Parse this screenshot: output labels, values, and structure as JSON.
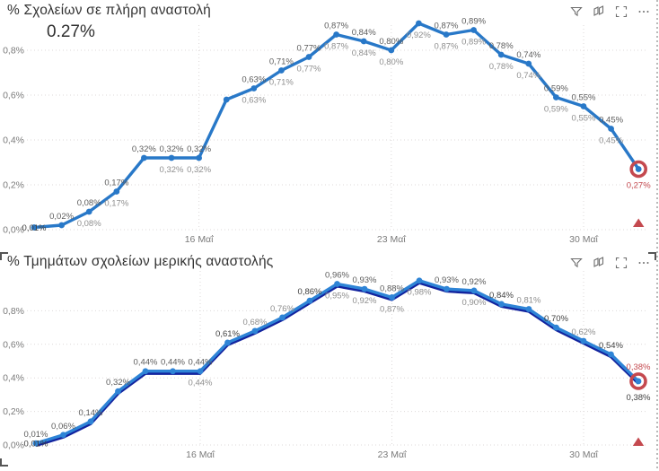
{
  "colors": {
    "line_blue": "#2878C8",
    "line_blue_bottom": "#2E84D6",
    "shadow_navy": "#12239E",
    "red_accent": "#C4494F",
    "label_above": "#5c5c5c",
    "label_below": "#8f8f8f",
    "label_dark": "#3f3f3f",
    "axis_text": "#7a7a7a",
    "title_text": "#333333"
  },
  "header_icons": [
    {
      "name": "filter"
    },
    {
      "name": "copy-visual"
    },
    {
      "name": "focus-mode"
    },
    {
      "name": "more-options"
    }
  ],
  "chart_data": [
    {
      "type": "line",
      "title": "% Σχολείων σε πλήρη αναστολή",
      "callout_value": "0.27%",
      "ylim": [
        0,
        0.9
      ],
      "grid": true,
      "yticks": [
        "0,0%",
        "0,2%",
        "0,4%",
        "0,6%",
        "0,8%"
      ],
      "xticks": [
        {
          "i": 6,
          "label": "16 Μαΐ"
        },
        {
          "i": 13,
          "label": "23 Μαΐ"
        },
        {
          "i": 20,
          "label": "30 Μαΐ"
        }
      ],
      "points": [
        {
          "v": 0.01,
          "on": "0,01%"
        },
        {
          "v": 0.02,
          "a": "0,02%"
        },
        {
          "v": 0.08,
          "a": "0,08%",
          "b": "0,08%"
        },
        {
          "v": 0.17,
          "a": "0,17%",
          "b": "0,17%"
        },
        {
          "v": 0.32,
          "a": "0,32%"
        },
        {
          "v": 0.32,
          "a": "0,32%",
          "b": "0,32%"
        },
        {
          "v": 0.32,
          "a": "0,32%",
          "b": "0,32%"
        },
        {
          "v": 0.58
        },
        {
          "v": 0.63,
          "a": "0,63%",
          "b": "0,63%"
        },
        {
          "v": 0.71,
          "a": "0,71%",
          "b": "0,71%"
        },
        {
          "v": 0.77,
          "a": "0,77%",
          "b": "0,77%"
        },
        {
          "v": 0.87,
          "a": "0,87%",
          "b": "0,87%"
        },
        {
          "v": 0.84,
          "a": "0,84%",
          "b": "0,84%"
        },
        {
          "v": 0.8,
          "a": "0,80%",
          "b": "0,80%"
        },
        {
          "v": 0.92,
          "b": "0,92%"
        },
        {
          "v": 0.87,
          "a": "0,87%",
          "b": "0,87%"
        },
        {
          "v": 0.89,
          "a": "0,89%",
          "b": "0,89%"
        },
        {
          "v": 0.78,
          "a": "0,78%",
          "b": "0,78%"
        },
        {
          "v": 0.74,
          "a": "0,74%",
          "b": "0,74%"
        },
        {
          "v": 0.59,
          "a": "0,59%",
          "b": "0,59%"
        },
        {
          "v": 0.55,
          "a": "0,55%",
          "b": "0,55%"
        },
        {
          "v": 0.45,
          "a": "0,45%",
          "b": "0,45%"
        },
        {
          "v": 0.27,
          "b": "0,27%",
          "bc": "#C4494F",
          "end": true
        }
      ]
    },
    {
      "type": "line",
      "title": "% Τμημάτων σχολείων μερικής αναστολής",
      "ylim": [
        0,
        1.05
      ],
      "grid": true,
      "shadow": true,
      "yticks": [
        "0,0%",
        "0,2%",
        "0,4%",
        "0,6%",
        "0,8%"
      ],
      "xticks": [
        {
          "i": 6,
          "label": "16 Μαΐ"
        },
        {
          "i": 13,
          "label": "23 Μαΐ"
        },
        {
          "i": 20,
          "label": "30 Μαΐ"
        }
      ],
      "points": [
        {
          "v": 0.01,
          "a": "0,01%",
          "on": "0,01%"
        },
        {
          "v": 0.06,
          "a": "0,06%"
        },
        {
          "v": 0.14,
          "a": "0,14%"
        },
        {
          "v": 0.32,
          "a": "0,32%"
        },
        {
          "v": 0.44,
          "a": "0,44%"
        },
        {
          "v": 0.44,
          "a": "0,44%"
        },
        {
          "v": 0.44,
          "a": "0,44%",
          "b": "0,44%"
        },
        {
          "v": 0.61,
          "a": "0,61%",
          "ac": "#3f3f3f"
        },
        {
          "v": 0.68,
          "a": "0,68%",
          "ac": "#8f8f8f"
        },
        {
          "v": 0.76,
          "a": "0,76%",
          "ac": "#8f8f8f"
        },
        {
          "v": 0.86,
          "a": "0,86%",
          "ac": "#3f3f3f"
        },
        {
          "v": 0.96,
          "a": "0,96%",
          "b": "0,95%"
        },
        {
          "v": 0.93,
          "a": "0,93%",
          "b": "0,92%"
        },
        {
          "v": 0.88,
          "a": "0,88%",
          "b": "0,87%"
        },
        {
          "v": 0.98,
          "b": "0,98%"
        },
        {
          "v": 0.93,
          "a": "0,93%"
        },
        {
          "v": 0.92,
          "a": "0,92%",
          "b": "0,90%"
        },
        {
          "v": 0.84,
          "a": "0,84%",
          "ac": "#3f3f3f"
        },
        {
          "v": 0.81,
          "a": "0,81%",
          "ac": "#8f8f8f"
        },
        {
          "v": 0.7,
          "a": "0,70%",
          "ac": "#3f3f3f"
        },
        {
          "v": 0.62,
          "a": "0,62%",
          "ac": "#8f8f8f"
        },
        {
          "v": 0.54,
          "a": "0,54%",
          "ac": "#3f3f3f"
        },
        {
          "v": 0.38,
          "a": "0,38%",
          "ac": "#C4494F",
          "b": "0,38%",
          "bc": "#3f3f3f",
          "end": true
        }
      ]
    }
  ]
}
